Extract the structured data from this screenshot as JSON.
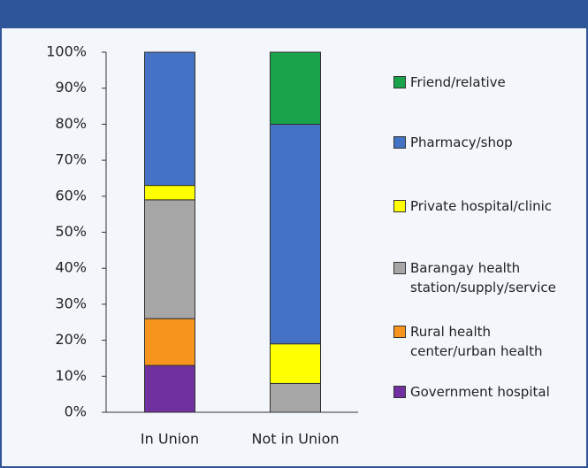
{
  "chart_data": {
    "type": "stacked_bar",
    "categories": [
      "In Union",
      "Not in Union"
    ],
    "series": [
      {
        "name": "Government hospital",
        "color": "#7030a0",
        "values": [
          13,
          0
        ]
      },
      {
        "name": "Rural health center/urban health",
        "color": "#f7941d",
        "values": [
          13,
          0
        ]
      },
      {
        "name": "Barangay health station/supply/service",
        "color": "#a6a6a6",
        "values": [
          33,
          8
        ]
      },
      {
        "name": "Private hospital/clinic",
        "color": "#ffff00",
        "values": [
          4,
          11
        ]
      },
      {
        "name": "Pharmacy/shop",
        "color": "#4472c4",
        "values": [
          37,
          61
        ]
      },
      {
        "name": "Friend/relative",
        "color": "#1aa34a",
        "values": [
          0,
          20
        ]
      }
    ],
    "ylim": [
      0,
      100
    ],
    "yticks": [
      {
        "value": 0,
        "label": "0%"
      },
      {
        "value": 10,
        "label": "10%"
      },
      {
        "value": 20,
        "label": "20%"
      },
      {
        "value": 30,
        "label": "30%"
      },
      {
        "value": 40,
        "label": "40%"
      },
      {
        "value": 50,
        "label": "50%"
      },
      {
        "value": 60,
        "label": "60%"
      },
      {
        "value": 70,
        "label": "70%"
      },
      {
        "value": 80,
        "label": "80%"
      },
      {
        "value": 90,
        "label": "90%"
      },
      {
        "value": 100,
        "label": "100%"
      }
    ],
    "grid": false,
    "legend": "right"
  }
}
